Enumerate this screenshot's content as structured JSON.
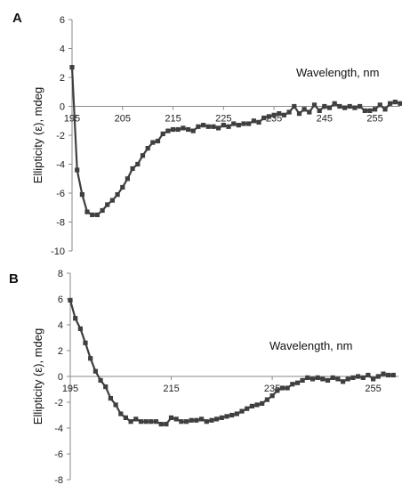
{
  "chart_data": [
    {
      "type": "line",
      "panel_label": "A",
      "xlabel": "Wavelength, nm",
      "ylabel": "Ellipticity  (ε), mdeg",
      "xlim": [
        195,
        260
      ],
      "ylim": [
        -10,
        6
      ],
      "xticks": [
        195,
        205,
        215,
        225,
        235,
        245,
        255
      ],
      "yticks": [
        6,
        4,
        2,
        0,
        -2,
        -4,
        -6,
        -8,
        -10
      ],
      "series_color": "#3f3f3f",
      "x": [
        195,
        196,
        197,
        198,
        199,
        200,
        201,
        202,
        203,
        204,
        205,
        206,
        207,
        208,
        209,
        210,
        211,
        212,
        213,
        214,
        215,
        216,
        217,
        218,
        219,
        220,
        221,
        222,
        223,
        224,
        225,
        226,
        227,
        228,
        229,
        230,
        231,
        232,
        233,
        234,
        235,
        236,
        237,
        238,
        239,
        240,
        241,
        242,
        243,
        244,
        245,
        246,
        247,
        248,
        249,
        250,
        251,
        252,
        253,
        254,
        255,
        256,
        257,
        258,
        259,
        260
      ],
      "y": [
        2.7,
        -4.4,
        -6.1,
        -7.3,
        -7.5,
        -7.5,
        -7.2,
        -6.8,
        -6.5,
        -6.1,
        -5.6,
        -5.0,
        -4.3,
        -4.0,
        -3.4,
        -2.9,
        -2.5,
        -2.4,
        -1.9,
        -1.7,
        -1.6,
        -1.6,
        -1.5,
        -1.6,
        -1.7,
        -1.4,
        -1.3,
        -1.4,
        -1.4,
        -1.5,
        -1.3,
        -1.4,
        -1.2,
        -1.3,
        -1.2,
        -1.2,
        -1.0,
        -1.1,
        -0.8,
        -0.7,
        -0.6,
        -0.5,
        -0.6,
        -0.4,
        0.0,
        -0.5,
        -0.2,
        -0.4,
        0.1,
        -0.3,
        0.0,
        -0.1,
        0.2,
        0.0,
        -0.1,
        0.0,
        -0.1,
        0.0,
        -0.3,
        -0.3,
        -0.2,
        0.1,
        -0.2,
        0.2,
        0.3,
        0.2
      ]
    },
    {
      "type": "line",
      "panel_label": "B",
      "xlabel": "Wavelength, nm",
      "ylabel": "Ellipticity  (ε), mdeg",
      "xlim": [
        195,
        260
      ],
      "ylim": [
        -8,
        8
      ],
      "xticks": [
        195,
        215,
        235,
        255
      ],
      "yticks": [
        8,
        6,
        4,
        2,
        0,
        -2,
        -4,
        -6,
        -8
      ],
      "series_color": "#3f3f3f",
      "x": [
        195,
        196,
        197,
        198,
        199,
        200,
        201,
        202,
        203,
        204,
        205,
        206,
        207,
        208,
        209,
        210,
        211,
        212,
        213,
        214,
        215,
        216,
        217,
        218,
        219,
        220,
        221,
        222,
        223,
        224,
        225,
        226,
        227,
        228,
        229,
        230,
        231,
        232,
        233,
        234,
        235,
        236,
        237,
        238,
        239,
        240,
        241,
        242,
        243,
        244,
        245,
        246,
        247,
        248,
        249,
        250,
        251,
        252,
        253,
        254,
        255,
        256,
        257,
        258,
        259
      ],
      "y": [
        5.9,
        4.5,
        3.7,
        2.6,
        1.4,
        0.4,
        -0.3,
        -0.8,
        -1.7,
        -2.2,
        -2.9,
        -3.2,
        -3.5,
        -3.3,
        -3.5,
        -3.5,
        -3.5,
        -3.5,
        -3.7,
        -3.7,
        -3.2,
        -3.3,
        -3.5,
        -3.5,
        -3.4,
        -3.4,
        -3.3,
        -3.5,
        -3.4,
        -3.3,
        -3.2,
        -3.1,
        -3.0,
        -2.9,
        -2.7,
        -2.5,
        -2.3,
        -2.2,
        -2.1,
        -1.8,
        -1.5,
        -1.1,
        -0.9,
        -0.9,
        -0.6,
        -0.5,
        -0.3,
        -0.1,
        -0.2,
        -0.1,
        -0.2,
        -0.3,
        -0.1,
        -0.2,
        -0.4,
        -0.2,
        -0.1,
        0.0,
        -0.1,
        0.1,
        -0.2,
        0.0,
        0.2,
        0.1,
        0.1
      ]
    }
  ]
}
